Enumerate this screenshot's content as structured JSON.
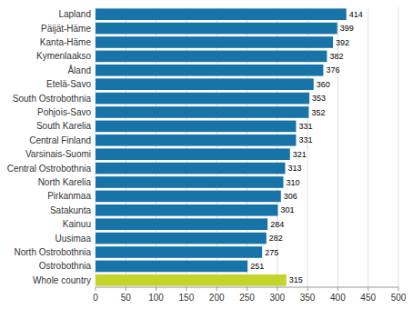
{
  "chart_data": {
    "type": "bar",
    "orientation": "horizontal",
    "categories": [
      "Whole country",
      "Ostrobothnia",
      "North Ostrobothnia",
      "Uusimaa",
      "Kainuu",
      "Satakunta",
      "Pirkanmaa",
      "North Karelia",
      "Central Ostrobothnia",
      "Varsinais-Suomi",
      "Central Finland",
      "South Karelia",
      "Pohjois-Savo",
      "South Ostrobothnia",
      "Etelä-Savo",
      "Åland",
      "Kymenlaakso",
      "Kanta-Häme",
      "Päijät-Häme",
      "Lapland"
    ],
    "values": [
      315,
      251,
      275,
      282,
      284,
      301,
      306,
      310,
      313,
      321,
      331,
      331,
      352,
      353,
      360,
      376,
      382,
      392,
      399,
      414
    ],
    "colors": [
      "#c5d42b",
      "#1874a8",
      "#1874a8",
      "#1874a8",
      "#1874a8",
      "#1874a8",
      "#1874a8",
      "#1874a8",
      "#1874a8",
      "#1874a8",
      "#1874a8",
      "#1874a8",
      "#1874a8",
      "#1874a8",
      "#1874a8",
      "#1874a8",
      "#1874a8",
      "#1874a8",
      "#1874a8",
      "#1874a8"
    ],
    "xlim": [
      0,
      500
    ],
    "xticks": [
      0,
      50,
      100,
      150,
      200,
      250,
      300,
      350,
      400,
      450,
      500
    ],
    "grid": true,
    "data_labels": true
  }
}
